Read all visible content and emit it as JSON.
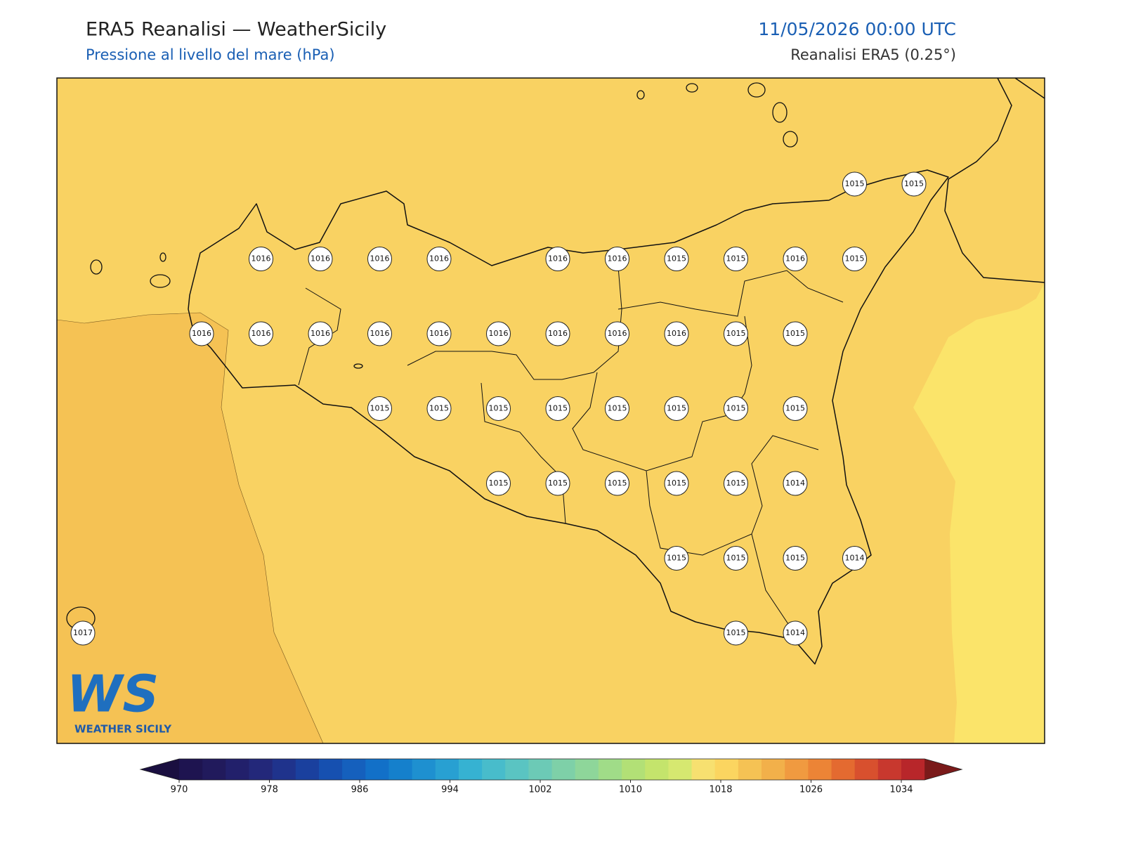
{
  "header": {
    "title": "ERA5 Reanalisi — WeatherSicily",
    "subtitle": "Pressione al livello del mare (hPa)",
    "datetime": "11/05/2026 00:00 UTC",
    "source": "Reanalisi ERA5 (0.25°)"
  },
  "map": {
    "stations": [
      1015,
      1015,
      1016,
      1016,
      1016,
      1016,
      1016,
      1016,
      1015,
      1015,
      1016,
      1015,
      1016,
      1016,
      1016,
      1016,
      1016,
      1016,
      1016,
      1016,
      1016,
      1015,
      1015,
      1015,
      1015,
      1015,
      1015,
      1015,
      1015,
      1015,
      1015,
      1015,
      1015,
      1015,
      1015,
      1015,
      1014,
      1015,
      1015,
      1015,
      1014,
      1017,
      1015,
      1014
    ]
  },
  "colorbar": {
    "ticks": [
      970,
      978,
      986,
      994,
      1002,
      1010,
      1018,
      1026,
      1034
    ],
    "colors": [
      "#1e1450",
      "#211a5c",
      "#22206b",
      "#23287a",
      "#1f338c",
      "#1a409e",
      "#1650b0",
      "#1560bd",
      "#1270c8",
      "#1580cc",
      "#1e90d0",
      "#28a0d2",
      "#36b2d2",
      "#48bccb",
      "#5ac4c2",
      "#6ccab6",
      "#7ed0a8",
      "#8ed69a",
      "#a0dc88",
      "#b2e076",
      "#c4e46c",
      "#d6e870",
      "#f7e070",
      "#fbd560",
      "#f5c254",
      "#f2b04a",
      "#f09a40",
      "#ec8436",
      "#e46a30",
      "#d8502e",
      "#c8382e",
      "#b8262a"
    ],
    "under_color": "#1a0f40",
    "over_color": "#7a1a1a"
  },
  "logo": {
    "mark": "WS",
    "name": "WEATHER SICILY"
  }
}
